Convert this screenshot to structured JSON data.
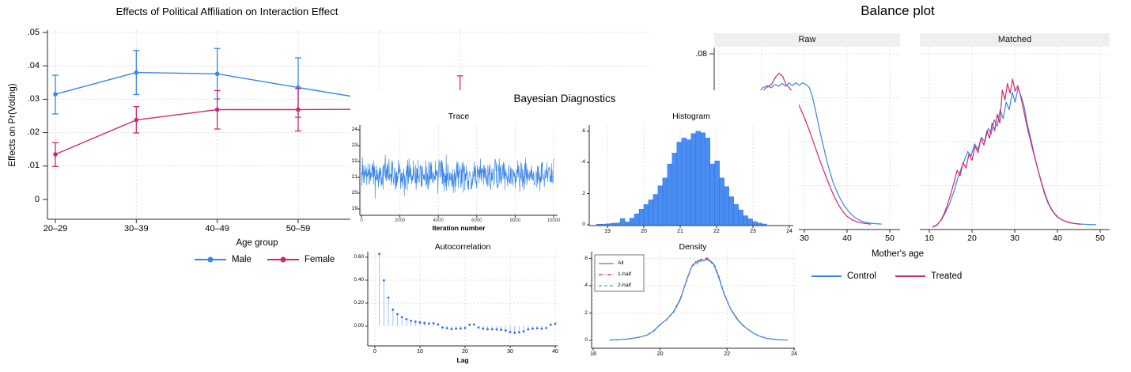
{
  "colors": {
    "blue": "#3A86E8",
    "red": "#D1286C",
    "green": "#38B98C",
    "hist_fill": "#4A8DF2",
    "hist_edge": "#2E6FD6",
    "stem_blue": "#9FC2F7",
    "dot_blue": "#2B6FE8",
    "grid": "#DCDCDC",
    "axis": "#2B2B2B",
    "header_bg": "#EFEFEF"
  },
  "chart_data": [
    {
      "id": "interaction",
      "type": "line",
      "title": "Effects of Political Affiliation on Interaction Effect",
      "xlabel": "Age group",
      "ylabel": "Effects on Pr(Voting)",
      "categories": [
        "20–29",
        "30–39",
        "40–49",
        "50–59"
      ],
      "yticks": [
        0,
        0.01,
        0.02,
        0.03,
        0.04,
        0.05
      ],
      "ytick_labels": [
        "0",
        ".01",
        ".02",
        ".03",
        ".04",
        ".05"
      ],
      "ylim": [
        -0.006,
        0.051
      ],
      "legend_position": "bottom",
      "series": [
        {
          "name": "Male",
          "values": [
            0.0315,
            0.038,
            0.0376,
            0.0335
          ],
          "ci_low": [
            0.0256,
            0.0314,
            0.0301,
            0.0246
          ],
          "ci_high": [
            0.0372,
            0.0446,
            0.0452,
            0.0424
          ],
          "offplot_extension": [
            0.0295
          ]
        },
        {
          "name": "Female",
          "values": [
            0.0135,
            0.0238,
            0.0269,
            0.0269
          ],
          "ci_low": [
            0.0099,
            0.0199,
            0.0211,
            0.0205
          ],
          "ci_high": [
            0.017,
            0.0278,
            0.0326,
            0.0332
          ],
          "offplot_extension": [
            0.027,
            0.0272
          ],
          "offplot_ext_ci": [
            0.021,
            0.037
          ]
        }
      ]
    },
    {
      "id": "trace",
      "type": "line",
      "group_title": "Bayesian Diagnostics",
      "title": "Trace",
      "xlabel": "Iteration number",
      "xticks": [
        0,
        2000,
        4000,
        6000,
        8000,
        10000
      ],
      "xtick_labels": [
        "0",
        "2000",
        "4000",
        "6000",
        "8000",
        "10000"
      ],
      "yticks": [
        19,
        20,
        21,
        22,
        23,
        24
      ],
      "ytick_labels": [
        "19",
        "20",
        "21",
        "22",
        "23",
        "24"
      ],
      "xlim": [
        0,
        10000
      ],
      "ylim": [
        18.4,
        24.3
      ],
      "noise": {
        "n": 620,
        "mean": 21.15,
        "spread": 1.15,
        "min": 18.75,
        "max": 23.75,
        "seed": 7
      }
    },
    {
      "id": "histogram",
      "type": "bar",
      "title": "Histogram",
      "xticks": [
        19,
        20,
        21,
        22,
        23,
        24
      ],
      "xtick_labels": [
        "19",
        "20",
        "21",
        "22",
        "23",
        "24"
      ],
      "yticks": [
        0,
        0.2,
        0.4,
        0.6
      ],
      "ytick_labels": [
        "0",
        ".2",
        ".4",
        ".6"
      ],
      "xlim": [
        18.55,
        24.3
      ],
      "ylim": [
        0,
        0.64
      ],
      "bar_start": 18.7,
      "bar_width": 0.13,
      "values": [
        0.004,
        0.004,
        0.006,
        0.01,
        0.012,
        0.04,
        0.018,
        0.042,
        0.07,
        0.1,
        0.13,
        0.16,
        0.195,
        0.25,
        0.3,
        0.39,
        0.46,
        0.53,
        0.556,
        0.545,
        0.585,
        0.6,
        0.59,
        0.556,
        0.39,
        0.41,
        0.3,
        0.245,
        0.18,
        0.13,
        0.095,
        0.058,
        0.038,
        0.02,
        0.011,
        0.005
      ]
    },
    {
      "id": "autocorrelation",
      "type": "lollipop",
      "title": "Autocorrelation",
      "xlabel": "Lag",
      "xticks": [
        0,
        10,
        20,
        30,
        40
      ],
      "xtick_labels": [
        "0",
        "10",
        "20",
        "30",
        "40"
      ],
      "yticks": [
        0,
        0.2,
        0.4,
        0.6
      ],
      "ytick_labels": [
        "0.00",
        "0.20",
        "0.40",
        "0.60"
      ],
      "xlim": [
        -1,
        41
      ],
      "ylim": [
        -0.17,
        0.66
      ],
      "values": [
        0.62,
        0.39,
        0.24,
        0.135,
        0.095,
        0.07,
        0.052,
        0.038,
        0.03,
        0.024,
        0.018,
        0.014,
        0.016,
        0.006,
        -0.004,
        -0.01,
        -0.018,
        -0.014,
        -0.013,
        -0.008,
        0.004,
        0.006,
        -0.004,
        -0.014,
        -0.019,
        -0.019,
        -0.021,
        -0.024,
        -0.03,
        -0.044,
        -0.05,
        -0.045,
        -0.038,
        -0.02,
        -0.014,
        -0.011,
        -0.014,
        -0.008,
        0.004,
        0.012
      ]
    },
    {
      "id": "density",
      "type": "line",
      "title": "Density",
      "xticks": [
        18,
        20,
        22,
        24
      ],
      "xtick_labels": [
        "18",
        "20",
        "22",
        "24"
      ],
      "yticks": [
        0,
        0.2,
        0.4,
        0.6
      ],
      "ytick_labels": [
        "0",
        ".2",
        ".4",
        ".6"
      ],
      "xlim": [
        17.9,
        24.35
      ],
      "ylim": [
        0,
        0.64
      ],
      "legend_position": "top-left",
      "legend": [
        {
          "label": "All",
          "color": "#3A86E8",
          "dash": "solid"
        },
        {
          "label": "1-half",
          "color": "#D1286C",
          "dash": "dashdot"
        },
        {
          "label": "2-half",
          "color": "#38B98C",
          "dash": "dash"
        }
      ],
      "x": [
        18.5,
        18.8,
        19.0,
        19.2,
        19.4,
        19.6,
        19.8,
        20.0,
        20.2,
        20.4,
        20.6,
        20.8,
        20.95,
        21.1,
        21.2,
        21.3,
        21.4,
        21.5,
        21.6,
        21.75,
        21.9,
        22.1,
        22.3,
        22.45,
        22.6,
        22.8,
        23.0,
        23.2,
        23.5,
        23.8
      ],
      "y": [
        0.002,
        0.005,
        0.009,
        0.016,
        0.024,
        0.038,
        0.068,
        0.115,
        0.155,
        0.21,
        0.3,
        0.45,
        0.545,
        0.575,
        0.59,
        0.582,
        0.595,
        0.585,
        0.555,
        0.46,
        0.35,
        0.23,
        0.155,
        0.115,
        0.085,
        0.05,
        0.028,
        0.014,
        0.005,
        0.002
      ]
    },
    {
      "id": "balance",
      "type": "line",
      "title": "Balance plot",
      "xlabel": "Mother's age",
      "panels": [
        "Raw",
        "Matched"
      ],
      "legend": [
        "Control",
        "Treated"
      ],
      "xticks": [
        10,
        20,
        30,
        40,
        50
      ],
      "xtick_labels": [
        "10",
        "20",
        "30",
        "40",
        "50"
      ],
      "yticks": [
        0.08
      ],
      "ytick_labels": [
        ".08"
      ],
      "grid_y": [
        0.02,
        0.04,
        0.06,
        0.08
      ],
      "xlim": [
        8.9,
        53
      ],
      "ylim": [
        0,
        0.083
      ],
      "raw": {
        "control": {
          "x": [
            10.3,
            11.5,
            13,
            14.5,
            16,
            17.5,
            19,
            20.2,
            21.3,
            22.2,
            23.2,
            24,
            24.8,
            25.6,
            26.4,
            27.2,
            28,
            28.8,
            29.6,
            30.4,
            31.2,
            31.8,
            32.6,
            33.5,
            34.5,
            35.5,
            36.7,
            38,
            39.3,
            40.6,
            42,
            43.5,
            45,
            46.5,
            48
          ],
          "y": [
            0.002,
            0.008,
            0.02,
            0.034,
            0.047,
            0.056,
            0.0615,
            0.0645,
            0.0655,
            0.0645,
            0.066,
            0.0652,
            0.0665,
            0.0652,
            0.0667,
            0.0655,
            0.0668,
            0.0657,
            0.0668,
            0.066,
            0.0645,
            0.061,
            0.0545,
            0.046,
            0.0375,
            0.0295,
            0.0215,
            0.0155,
            0.011,
            0.0078,
            0.0052,
            0.0038,
            0.003,
            0.0027,
            0.0025
          ]
        },
        "treated": {
          "x": [
            10.8,
            12,
            13.5,
            15,
            16.5,
            18,
            19.5,
            21,
            22.3,
            23.3,
            24.1,
            24.9,
            25.7,
            26.5,
            27.3,
            28.1,
            29,
            30,
            31,
            32,
            33,
            34,
            35,
            36,
            37,
            38,
            39,
            40,
            41.2,
            42.5,
            44,
            45.5
          ],
          "y": [
            0.0015,
            0.007,
            0.019,
            0.033,
            0.046,
            0.0555,
            0.0615,
            0.0645,
            0.066,
            0.0695,
            0.0712,
            0.0698,
            0.066,
            0.0645,
            0.0625,
            0.0595,
            0.0555,
            0.051,
            0.046,
            0.0405,
            0.035,
            0.0295,
            0.0245,
            0.0195,
            0.015,
            0.0112,
            0.0082,
            0.006,
            0.0044,
            0.0034,
            0.0028,
            0.0025
          ]
        }
      },
      "matched": {
        "control": {
          "x": [
            10.8,
            11.8,
            12.8,
            13.8,
            14.8,
            15.8,
            16.6,
            17.4,
            18.2,
            19,
            19.8,
            20.6,
            21.4,
            22.2,
            23,
            23.8,
            24.5,
            25.2,
            25.9,
            26.6,
            27.3,
            28,
            28.7,
            29.4,
            30.1,
            30.8,
            31.5,
            32.2,
            33,
            33.8,
            34.6,
            35.4,
            36.2,
            37,
            37.8,
            38.8,
            39.8,
            40.8,
            41.8,
            42.8,
            43.8,
            45,
            46.2,
            47.5,
            49
          ],
          "y": [
            0.0012,
            0.0022,
            0.0042,
            0.0078,
            0.012,
            0.0175,
            0.023,
            0.0275,
            0.0315,
            0.0355,
            0.0335,
            0.039,
            0.0365,
            0.042,
            0.04,
            0.046,
            0.0435,
            0.05,
            0.047,
            0.0545,
            0.0505,
            0.058,
            0.0545,
            0.0625,
            0.058,
            0.0645,
            0.0605,
            0.056,
            0.0475,
            0.041,
            0.034,
            0.0275,
            0.0215,
            0.016,
            0.012,
            0.0085,
            0.006,
            0.0047,
            0.0038,
            0.0032,
            0.0028,
            0.0025,
            0.0024,
            0.0023,
            0.0022
          ]
        },
        "treated": {
          "x": [
            11,
            11.8,
            12.6,
            13.4,
            14.2,
            15,
            15.8,
            16.5,
            17.2,
            17.9,
            18.6,
            19.3,
            20,
            20.7,
            21.4,
            22.1,
            22.8,
            23.5,
            24.1,
            24.7,
            25.3,
            25.9,
            26.5,
            27.1,
            27.7,
            28.3,
            28.9,
            29.5,
            30.1,
            30.7,
            31.3,
            31.9,
            32.6,
            33.3,
            34,
            34.8,
            35.6,
            36.4,
            37.2,
            38,
            39,
            40,
            41,
            42,
            43,
            44.2,
            45.5
          ],
          "y": [
            0.0012,
            0.002,
            0.0038,
            0.007,
            0.011,
            0.016,
            0.0215,
            0.027,
            0.0245,
            0.0305,
            0.028,
            0.0345,
            0.0315,
            0.038,
            0.035,
            0.0415,
            0.0385,
            0.045,
            0.0415,
            0.0485,
            0.045,
            0.0525,
            0.0485,
            0.0635,
            0.059,
            0.0665,
            0.062,
            0.0685,
            0.063,
            0.0655,
            0.0615,
            0.056,
            0.0495,
            0.0435,
            0.038,
            0.032,
            0.026,
            0.0205,
            0.0155,
            0.0115,
            0.008,
            0.0058,
            0.0045,
            0.0036,
            0.003,
            0.0027,
            0.0025
          ]
        }
      }
    }
  ]
}
